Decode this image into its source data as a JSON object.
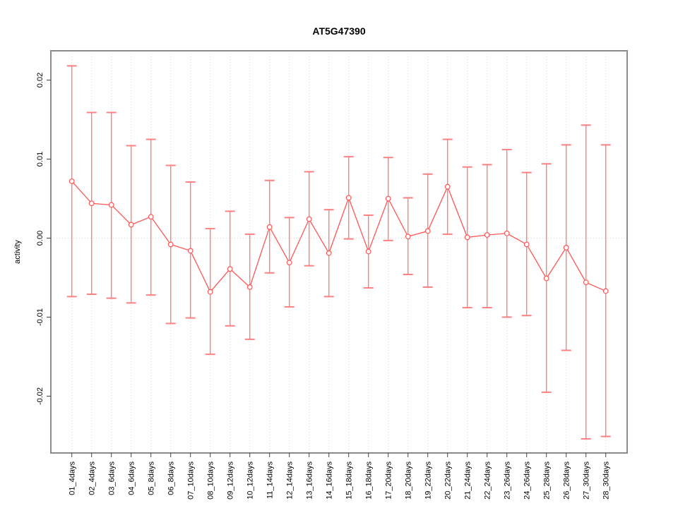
{
  "chart_data": {
    "type": "line",
    "title": "AT5G47390",
    "xlabel": "",
    "ylabel": "activity",
    "ylim": [
      -0.0272,
      0.0238
    ],
    "ytick_values": [
      -0.02,
      -0.01,
      0.0,
      0.01,
      0.02
    ],
    "ytick_labels": [
      "-0.02",
      "-0.01",
      "0.00",
      "0.01",
      "0.02"
    ],
    "grid": "vertical dotted line per category, horizontal dotted line at y=0",
    "legend": "none",
    "marker": "open-circle",
    "colors": {
      "series": "#ff5555",
      "error_bars": "#ff8080",
      "grid": "#dcdcdc",
      "zero_line": "#d8d8d8",
      "frame": "#8a8a8a",
      "ticks": "#444444"
    },
    "categories": [
      "01_4days",
      "02_4days",
      "03_6days",
      "04_6days",
      "05_8days",
      "06_8days",
      "07_10days",
      "08_10days",
      "09_12days",
      "10_12days",
      "11_14days",
      "12_14days",
      "13_16days",
      "14_16days",
      "15_18days",
      "16_18days",
      "17_20days",
      "18_20days",
      "19_22days",
      "20_22days",
      "21_24days",
      "22_24days",
      "23_26days",
      "24_26days",
      "25_28days",
      "26_28days",
      "27_30days",
      "28_30days"
    ],
    "series": [
      {
        "name": "activity",
        "values": [
          0.0072,
          0.0044,
          0.0042,
          0.0017,
          0.0027,
          -0.0008,
          -0.0016,
          -0.0068,
          -0.0039,
          -0.0062,
          0.0014,
          -0.0031,
          0.0024,
          -0.0019,
          0.0051,
          -0.0017,
          0.005,
          0.0002,
          0.0009,
          0.0065,
          0.0001,
          0.0004,
          0.0006,
          -0.0008,
          -0.0051,
          -0.0012,
          -0.0056,
          -0.0067
        ],
        "upper": [
          0.0218,
          0.0159,
          0.0159,
          0.0117,
          0.0125,
          0.0092,
          0.0071,
          0.0012,
          0.0034,
          0.0005,
          0.0073,
          0.0026,
          0.0084,
          0.0036,
          0.0103,
          0.0029,
          0.0102,
          0.0051,
          0.0081,
          0.0125,
          0.009,
          0.0093,
          0.0112,
          0.0083,
          0.0094,
          0.0118,
          0.0143,
          0.0118
        ],
        "lower": [
          -0.0074,
          -0.0071,
          -0.0076,
          -0.0082,
          -0.0072,
          -0.0108,
          -0.0101,
          -0.0147,
          -0.0111,
          -0.0128,
          -0.0044,
          -0.0087,
          -0.0035,
          -0.0074,
          -0.0001,
          -0.0063,
          -0.0003,
          -0.0046,
          -0.0062,
          0.0005,
          -0.0088,
          -0.0088,
          -0.01,
          -0.0098,
          -0.0195,
          -0.0142,
          -0.0254,
          -0.0251
        ]
      }
    ]
  }
}
